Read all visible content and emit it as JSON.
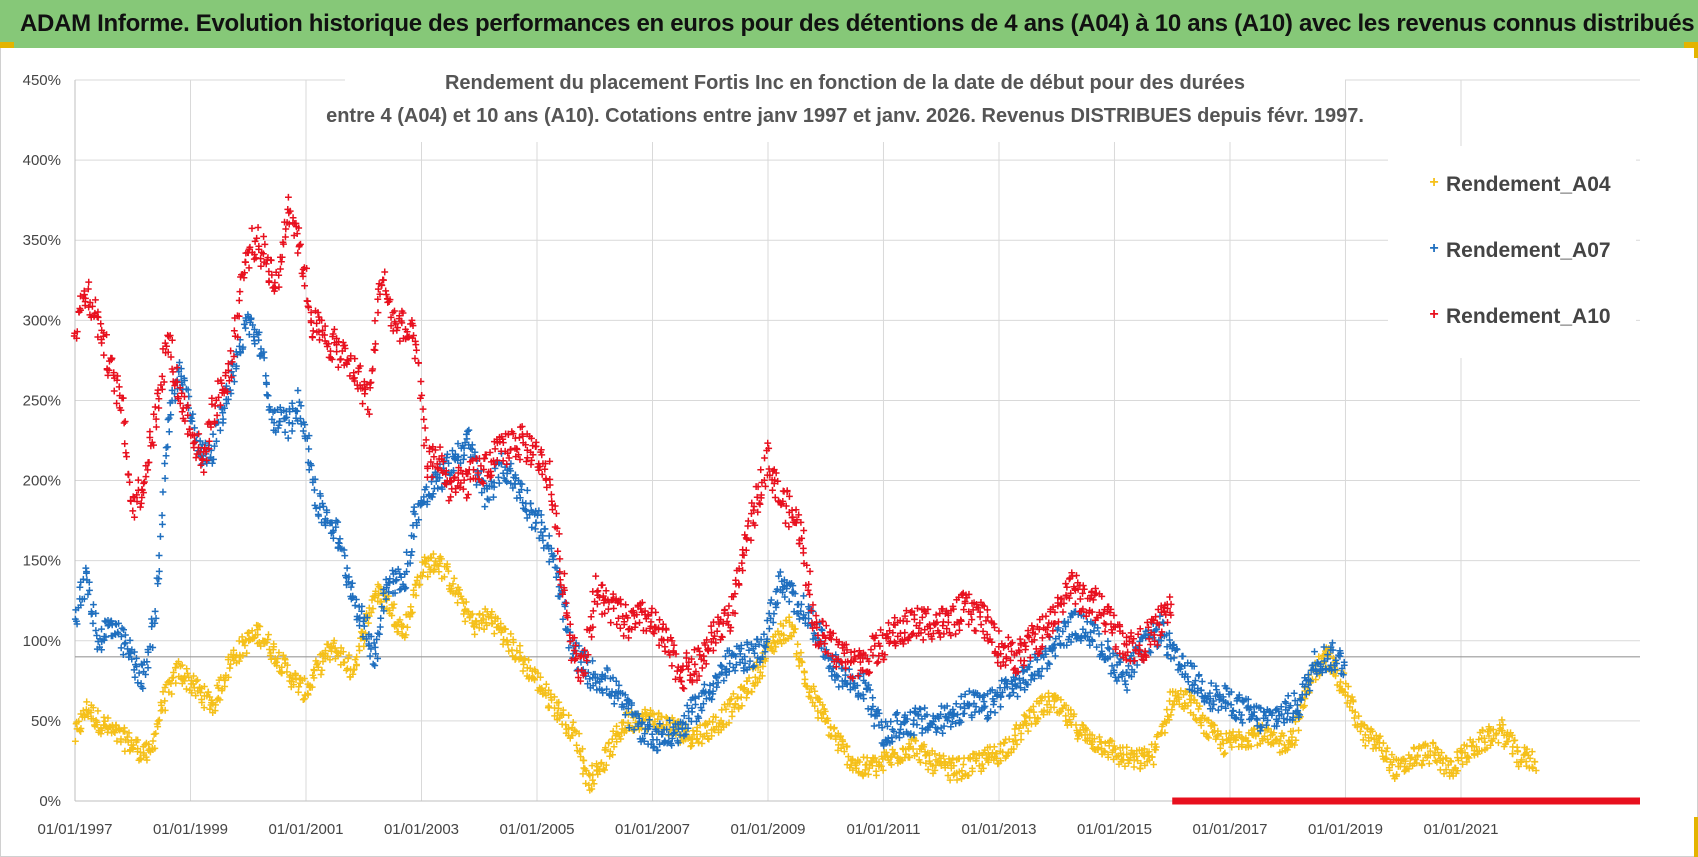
{
  "banner": {
    "title": "ADAM Informe. Evolution historique des performances en euros pour des détentions de 4 ans (A04) à 10 ans (A10) avec les revenus connus distribués"
  },
  "colors": {
    "banner_bg": "#86c878",
    "a04": "#f5c01a",
    "a07": "#1f6fbf",
    "a10": "#e8101e"
  },
  "chart_data": {
    "type": "scatter",
    "title_line1": "Rendement du placement Fortis Inc en fonction de la date de début pour des durées",
    "title_line2": "entre 4 (A04) et 10 ans (A10). Cotations entre janv 1997 et janv. 2026. Revenus DISTRIBUES depuis févr. 1997.",
    "xlabel": "",
    "ylabel": "",
    "xlim": [
      1997.0,
      2024.1
    ],
    "ylim": [
      0,
      450
    ],
    "y_ticks": [
      "0%",
      "50%",
      "100%",
      "150%",
      "200%",
      "250%",
      "300%",
      "350%",
      "400%",
      "450%"
    ],
    "y_tick_values": [
      0,
      50,
      100,
      150,
      200,
      250,
      300,
      350,
      400,
      450
    ],
    "x_ticks": [
      "01/01/1997",
      "01/01/1999",
      "01/01/2001",
      "01/01/2003",
      "01/01/2005",
      "01/01/2007",
      "01/01/2009",
      "01/01/2011",
      "01/01/2013",
      "01/01/2015",
      "01/01/2017",
      "01/01/2019",
      "01/01/2021"
    ],
    "x_tick_values": [
      1997,
      1999,
      2001,
      2003,
      2005,
      2007,
      2009,
      2011,
      2013,
      2015,
      2017,
      2019,
      2021
    ],
    "reference_line": 90,
    "legend_position": "top-right",
    "marker": "+",
    "series": [
      {
        "name": "Rendement_A04",
        "color": "#f5c01a",
        "x": [
          1997.0,
          1997.2,
          1997.4,
          1997.7,
          1998.0,
          1998.3,
          1998.5,
          1998.8,
          1999.1,
          1999.4,
          1999.7,
          2000.0,
          2000.2,
          2000.5,
          2000.8,
          2001.0,
          2001.3,
          2001.5,
          2001.8,
          2002.0,
          2002.2,
          2002.4,
          2002.7,
          2003.0,
          2003.3,
          2003.6,
          2003.9,
          2004.2,
          2004.5,
          2004.8,
          2005.1,
          2005.4,
          2005.7,
          2005.9,
          2006.2,
          2006.5,
          2006.8,
          2007.1,
          2007.4,
          2007.7,
          2008.0,
          2008.3,
          2008.6,
          2008.9,
          2009.1,
          2009.4,
          2009.7,
          2010.0,
          2010.3,
          2010.6,
          2010.9,
          2011.2,
          2011.5,
          2011.8,
          2012.1,
          2012.4,
          2012.7,
          2013.0,
          2013.3,
          2013.6,
          2013.9,
          2014.2,
          2014.5,
          2014.8,
          2015.1,
          2015.4,
          2015.7,
          2016.0,
          2016.3,
          2016.6,
          2016.9,
          2017.2,
          2017.5,
          2017.8,
          2018.1,
          2018.4,
          2018.7,
          2019.0,
          2019.3,
          2019.6,
          2019.9,
          2020.2,
          2020.5,
          2020.8,
          2021.1,
          2021.4,
          2021.7,
          2022.0,
          2022.3
        ],
        "values": [
          40,
          58,
          50,
          42,
          35,
          28,
          60,
          82,
          70,
          60,
          88,
          100,
          105,
          90,
          75,
          68,
          90,
          95,
          82,
          105,
          130,
          125,
          105,
          145,
          150,
          130,
          110,
          115,
          100,
          85,
          70,
          55,
          38,
          12,
          28,
          48,
          52,
          50,
          45,
          40,
          45,
          55,
          68,
          85,
          100,
          110,
          70,
          50,
          32,
          20,
          22,
          28,
          35,
          25,
          20,
          20,
          25,
          30,
          40,
          55,
          62,
          52,
          40,
          35,
          28,
          25,
          30,
          65,
          62,
          45,
          35,
          40,
          42,
          35,
          40,
          78,
          90,
          70,
          42,
          35,
          18,
          28,
          30,
          20,
          30,
          38,
          44,
          28,
          25
        ],
        "spread": 7
      },
      {
        "name": "Rendement_A07",
        "color": "#1f6fbf",
        "x": [
          1997.0,
          1997.2,
          1997.4,
          1997.6,
          1997.9,
          1998.2,
          1998.4,
          1998.6,
          1998.8,
          1999.0,
          1999.2,
          1999.4,
          1999.7,
          2000.0,
          2000.2,
          2000.4,
          2000.7,
          2000.9,
          2001.2,
          2001.5,
          2001.8,
          2002.0,
          2002.2,
          2002.4,
          2002.7,
          2002.9,
          2003.2,
          2003.5,
          2003.8,
          2004.1,
          2004.4,
          2004.7,
          2005.0,
          2005.2,
          2005.4,
          2005.6,
          2005.9,
          2006.2,
          2006.5,
          2006.8,
          2007.1,
          2007.4,
          2007.7,
          2008.0,
          2008.3,
          2008.6,
          2008.9,
          2009.2,
          2009.5,
          2009.8,
          2010.1,
          2010.4,
          2010.7,
          2011.0,
          2011.3,
          2011.6,
          2011.9,
          2012.2,
          2012.5,
          2012.8,
          2013.1,
          2013.4,
          2013.7,
          2014.0,
          2014.3,
          2014.6,
          2014.9,
          2015.2,
          2015.5,
          2015.8,
          2016.1,
          2016.4,
          2016.7,
          2017.0,
          2017.3,
          2017.6,
          2017.9,
          2018.2,
          2018.5,
          2018.8,
          2019.0
        ],
        "values": [
          115,
          140,
          100,
          110,
          95,
          75,
          120,
          230,
          270,
          245,
          215,
          220,
          265,
          300,
          285,
          240,
          235,
          250,
          185,
          170,
          130,
          110,
          90,
          140,
          135,
          180,
          195,
          210,
          225,
          190,
          210,
          195,
          175,
          160,
          130,
          95,
          80,
          75,
          60,
          45,
          40,
          42,
          55,
          70,
          85,
          90,
          95,
          135,
          125,
          110,
          85,
          75,
          70,
          40,
          48,
          50,
          48,
          55,
          60,
          58,
          70,
          75,
          85,
          100,
          110,
          105,
          90,
          78,
          95,
          108,
          85,
          75,
          65,
          62,
          55,
          50,
          55,
          60,
          88,
          90,
          85
        ],
        "spread": 9
      },
      {
        "name": "Rendement_A10",
        "color": "#e8101e",
        "x": [
          1997.0,
          1997.2,
          1997.4,
          1997.6,
          1997.8,
          1998.0,
          1998.2,
          1998.4,
          1998.6,
          1998.8,
          1999.0,
          1999.2,
          1999.4,
          1999.7,
          1999.9,
          2000.1,
          2000.3,
          2000.5,
          2000.7,
          2000.9,
          2001.1,
          2001.3,
          2001.6,
          2001.9,
          2002.1,
          2002.3,
          2002.5,
          2002.7,
          2002.9,
          2003.1,
          2003.3,
          2003.5,
          2003.8,
          2004.0,
          2004.3,
          2004.6,
          2004.9,
          2005.2,
          2005.4,
          2005.6,
          2005.8,
          2006.0,
          2006.3,
          2006.6,
          2006.9,
          2007.2,
          2007.5,
          2007.8,
          2008.1,
          2008.4,
          2008.7,
          2009.0,
          2009.2,
          2009.4,
          2009.6,
          2009.8,
          2010.0,
          2010.3,
          2010.6,
          2010.9,
          2011.2,
          2011.5,
          2011.8,
          2012.1,
          2012.4,
          2012.7,
          2013.0,
          2013.3,
          2013.6,
          2013.9,
          2014.2,
          2014.5,
          2014.8,
          2015.1,
          2015.4,
          2015.7,
          2016.0
        ],
        "values": [
          295,
          320,
          300,
          270,
          250,
          185,
          200,
          240,
          290,
          255,
          235,
          210,
          245,
          270,
          330,
          350,
          340,
          320,
          375,
          345,
          300,
          290,
          280,
          265,
          250,
          330,
          300,
          295,
          285,
          210,
          215,
          195,
          200,
          205,
          215,
          225,
          220,
          205,
          150,
          100,
          80,
          130,
          120,
          110,
          115,
          100,
          80,
          85,
          105,
          120,
          175,
          215,
          190,
          180,
          165,
          110,
          100,
          90,
          85,
          95,
          105,
          110,
          112,
          110,
          120,
          115,
          95,
          90,
          100,
          110,
          135,
          125,
          120,
          100,
          95,
          105,
          125
        ],
        "spread": 11
      }
    ],
    "a10_floor": {
      "x_start": 2016.0,
      "x_end": 2024.1,
      "value": 0
    }
  }
}
